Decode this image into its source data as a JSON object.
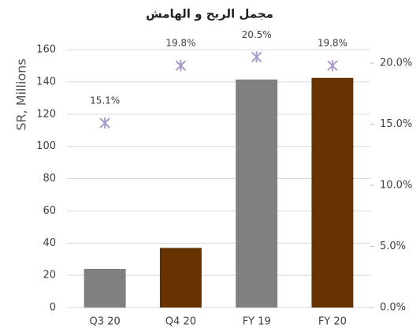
{
  "chart_data": {
    "type": "bar_marker",
    "title": "مجمل الربح و الهامش",
    "y_label": "SR, Millions",
    "categories": [
      "Q3 20",
      "Q4 20",
      "FY 19",
      "FY 20"
    ],
    "series": [
      {
        "type": "bar",
        "colors": [
          "#808080",
          "#663300",
          "#808080",
          "#663300"
        ],
        "values": [
          24,
          37,
          141.5,
          142.5
        ]
      },
      {
        "type": "marker",
        "axis": "y2",
        "color": "#a99ac9",
        "values": [
          15.1,
          19.8,
          20.5,
          19.8
        ],
        "value_labels": [
          "15.1%",
          "19.8%",
          "20.5%",
          "19.8%"
        ]
      }
    ],
    "ylim": [
      0,
      160
    ],
    "yticks": [
      0,
      20,
      40,
      60,
      80,
      100,
      120,
      140,
      160
    ],
    "y2lim": [
      0,
      21.1
    ],
    "y2ticks": [
      {
        "value": 0,
        "label": "0.0%"
      },
      {
        "value": 5,
        "label": "5.0%"
      },
      {
        "value": 10,
        "label": "10.0%"
      },
      {
        "value": 15,
        "label": "15.0%"
      },
      {
        "value": 20,
        "label": "20.0%"
      }
    ],
    "grid": true
  }
}
